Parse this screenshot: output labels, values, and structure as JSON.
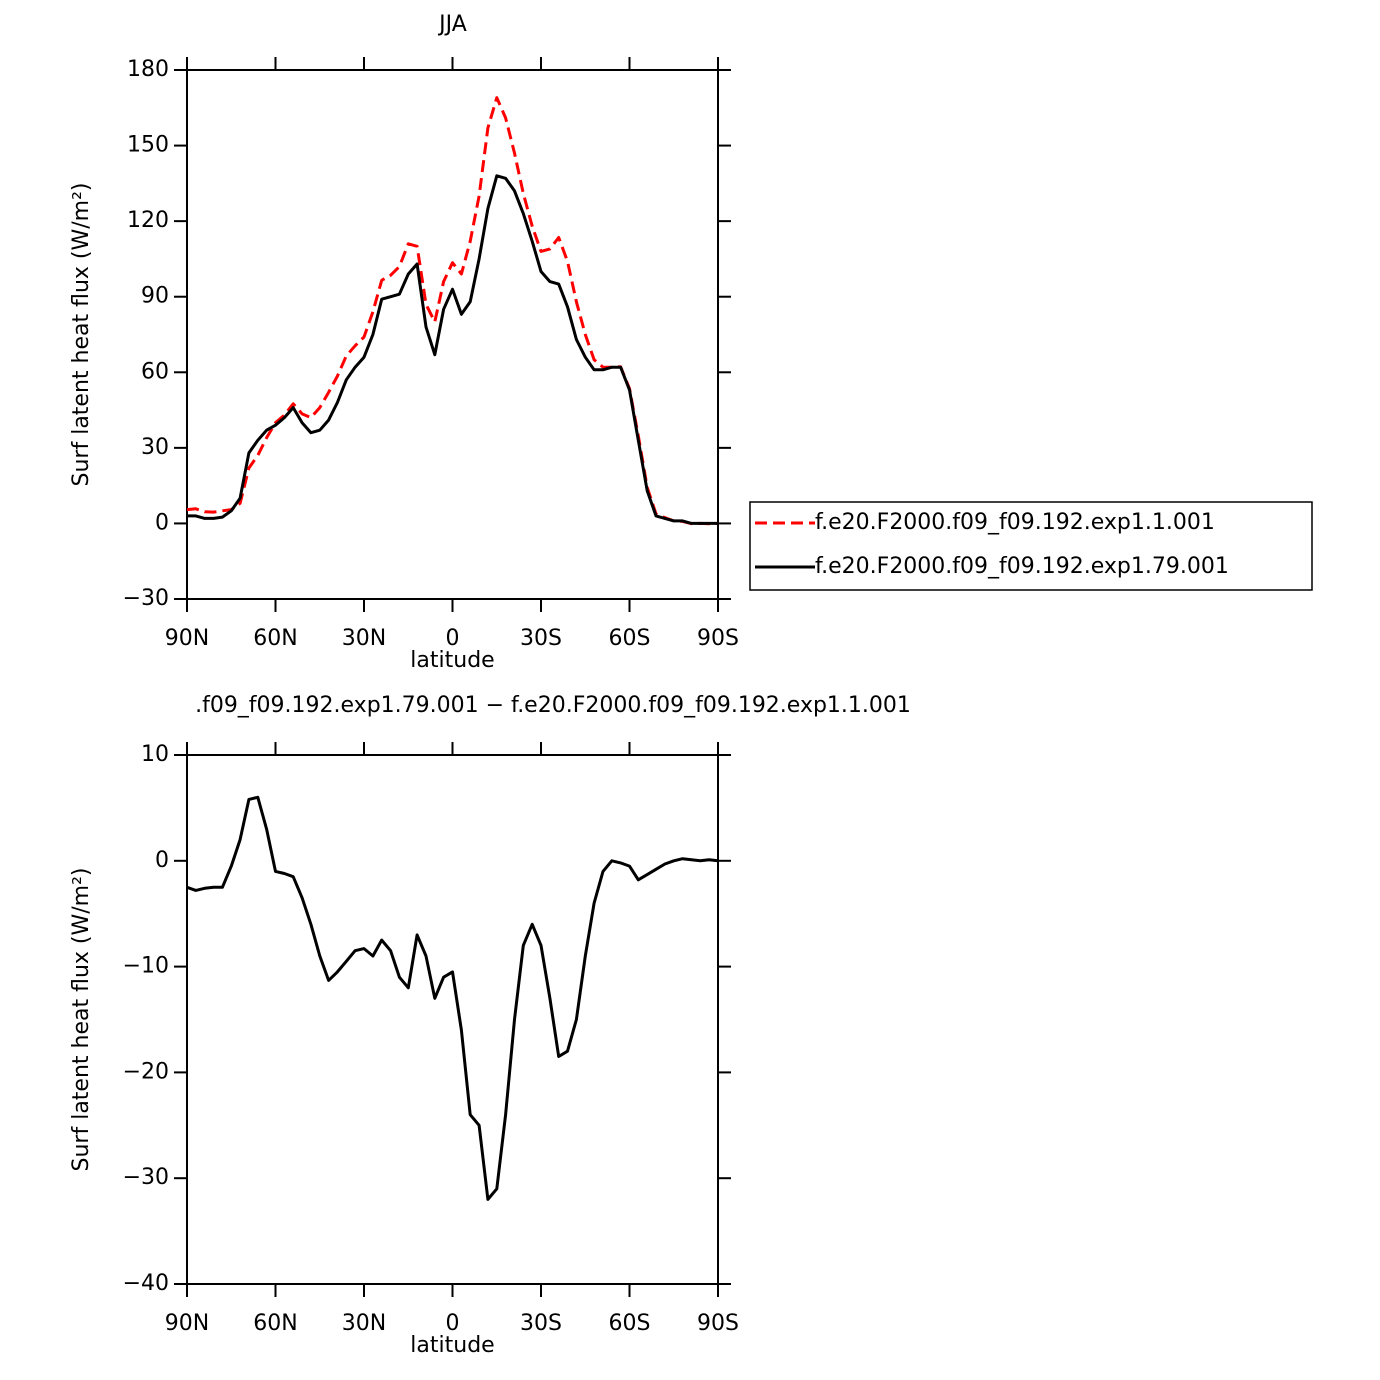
{
  "chart_data": [
    {
      "type": "line",
      "title": "JJA",
      "xlabel": "latitude",
      "ylabel": "Surf latent heat flux (W/m²)",
      "x": [
        90,
        87,
        84,
        81,
        78,
        75,
        72,
        69,
        66,
        63,
        60,
        57,
        54,
        51,
        48,
        45,
        42,
        39,
        36,
        33,
        30,
        27,
        24,
        21,
        18,
        15,
        12,
        9,
        6,
        3,
        0,
        -3,
        -6,
        -9,
        -12,
        -15,
        -18,
        -21,
        -24,
        -27,
        -30,
        -33,
        -36,
        -39,
        -42,
        -45,
        -48,
        -51,
        -54,
        -57,
        -60,
        -63,
        -66,
        -69,
        -72,
        -75,
        -78,
        -81,
        -84,
        -87,
        -90
      ],
      "series": [
        {
          "name": "f.e20.F2000.f09_f09.192.exp1.1.001",
          "color": "#ff0000",
          "style": "dashed",
          "values": [
            5.5,
            5.8,
            4.6,
            4.5,
            5,
            5.5,
            8,
            22,
            27,
            34,
            40,
            43,
            47.5,
            43.5,
            42,
            46,
            52,
            58.5,
            66.5,
            70.5,
            74,
            84,
            96.5,
            98.5,
            102,
            111,
            110,
            87,
            80,
            96,
            103.5,
            99,
            112,
            130,
            157,
            169,
            161,
            147,
            131,
            118,
            108,
            109,
            113.5,
            104,
            88,
            75,
            65,
            62,
            62,
            62.2,
            53.5,
            34.8,
            14.3,
            3.8,
            2.3,
            1,
            0.8,
            -0.1,
            0,
            -0.1,
            0
          ]
        },
        {
          "name": "f.e20.F2000.f09_f09.192.exp1.79.001",
          "color": "#000000",
          "style": "solid",
          "values": [
            3,
            3,
            2,
            2,
            2.5,
            5,
            10,
            28,
            33,
            37,
            39,
            42,
            46,
            40,
            36,
            37,
            41,
            48,
            57,
            62,
            66,
            75,
            89,
            90,
            91,
            99,
            103,
            78,
            67,
            85,
            93,
            83,
            88,
            105,
            125,
            138,
            137,
            132,
            123,
            112,
            100,
            96,
            95,
            86,
            73,
            66,
            61,
            61,
            62,
            62,
            53,
            33,
            13,
            3,
            2,
            1,
            1,
            0,
            0,
            0,
            0
          ]
        }
      ],
      "xlim": [
        90,
        -90
      ],
      "xticks": [
        {
          "value": 90,
          "label": "90N"
        },
        {
          "value": 60,
          "label": "60N"
        },
        {
          "value": 30,
          "label": "30N"
        },
        0,
        {
          "value": -30,
          "label": "30S"
        },
        {
          "value": -60,
          "label": "60S"
        },
        {
          "value": -90,
          "label": "90S"
        }
      ],
      "ylim": [
        -30,
        180
      ],
      "yticks": [
        {
          "value": -30,
          "label": "−30"
        },
        0,
        30,
        60,
        90,
        120,
        150,
        180
      ],
      "legend": "right"
    },
    {
      "type": "line",
      "title": ".f09_f09.192.exp1.79.001 − f.e20.F2000.f09_f09.192.exp1.1.001",
      "xlabel": "latitude",
      "ylabel": "Surf latent heat flux (W/m²)",
      "x": [
        90,
        87,
        84,
        81,
        78,
        75,
        72,
        69,
        66,
        63,
        60,
        57,
        54,
        51,
        48,
        45,
        42,
        39,
        36,
        33,
        30,
        27,
        24,
        21,
        18,
        15,
        12,
        9,
        6,
        3,
        0,
        -3,
        -6,
        -9,
        -12,
        -15,
        -18,
        -21,
        -24,
        -27,
        -30,
        -33,
        -36,
        -39,
        -42,
        -45,
        -48,
        -51,
        -54,
        -57,
        -60,
        -63,
        -66,
        -69,
        -72,
        -75,
        -78,
        -81,
        -84,
        -87,
        -90
      ],
      "color": "#000000",
      "values": [
        -2.5,
        -2.8,
        -2.6,
        -2.5,
        -2.5,
        -0.5,
        2,
        5.8,
        6,
        3,
        -1,
        -1.2,
        -1.5,
        -3.5,
        -6,
        -9,
        -11.3,
        -10.5,
        -9.5,
        -8.5,
        -8.3,
        -9,
        -7.5,
        -8.5,
        -11,
        -12,
        -7,
        -9,
        -13,
        -11,
        -10.5,
        -16,
        -24,
        -25,
        -32,
        -31,
        -24,
        -15,
        -8,
        -6,
        -8,
        -13,
        -18.5,
        -18,
        -15,
        -9,
        -4,
        -1,
        0,
        -0.2,
        -0.5,
        -1.8,
        -1.3,
        -0.8,
        -0.3,
        0,
        0.2,
        0.1,
        0,
        0.1,
        0
      ],
      "xlim": [
        90,
        -90
      ],
      "xticks": [
        {
          "value": 90,
          "label": "90N"
        },
        {
          "value": 60,
          "label": "60N"
        },
        {
          "value": 30,
          "label": "30N"
        },
        0,
        {
          "value": -30,
          "label": "30S"
        },
        {
          "value": -60,
          "label": "60S"
        },
        {
          "value": -90,
          "label": "90S"
        }
      ],
      "ylim": [
        -40,
        10
      ],
      "yticks": [
        {
          "value": -40,
          "label": "−40"
        },
        {
          "value": -30,
          "label": "−30"
        },
        {
          "value": -20,
          "label": "−20"
        },
        {
          "value": -10,
          "label": "−10"
        },
        0,
        10
      ]
    }
  ]
}
